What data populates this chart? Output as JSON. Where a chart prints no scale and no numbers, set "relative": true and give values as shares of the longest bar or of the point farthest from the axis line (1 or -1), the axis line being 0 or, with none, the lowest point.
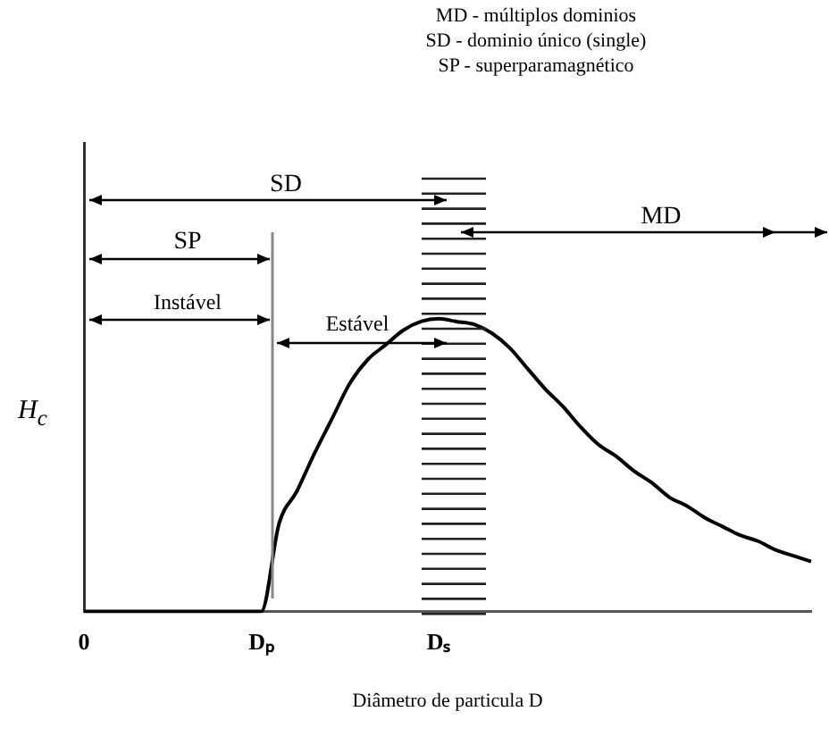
{
  "chart_data": {
    "type": "line",
    "relative": true,
    "xlabel": "Diâmetro de particula D",
    "ylabel": "H$_{c}$",
    "categories": [
      "0",
      null,
      null,
      null,
      null,
      null,
      null,
      null,
      null,
      null,
      "Dₚ",
      null,
      null,
      null,
      null,
      null,
      null,
      null,
      null,
      null,
      "Dₛ",
      null,
      null,
      null,
      null,
      null,
      null,
      null,
      null,
      null,
      null,
      null,
      null,
      null,
      null,
      null,
      null,
      null,
      null,
      null,
      null,
      null
    ],
    "series": [
      {
        "color": "#000000",
        "values": [
          0,
          0,
          0,
          0,
          0,
          0,
          0,
          0,
          0,
          0,
          0,
          0.3,
          0.41,
          0.54,
          0.66,
          0.78,
          0.86,
          0.91,
          0.96,
          0.99,
          1,
          0.99,
          0.98,
          0.95,
          0.9,
          0.83,
          0.76,
          0.7,
          0.63,
          0.57,
          0.53,
          0.48,
          0.44,
          0.39,
          0.36,
          0.32,
          0.29,
          0.26,
          0.24,
          0.21,
          0.19,
          0.17
        ]
      }
    ],
    "annotations": [
      "MD - múltiplos dominios",
      "SD - dominio único (single)",
      "SP - superparamagnético",
      "SD",
      "SP",
      "Instável",
      "Estável",
      "MD"
    ],
    "grid": false,
    "legend": false
  }
}
